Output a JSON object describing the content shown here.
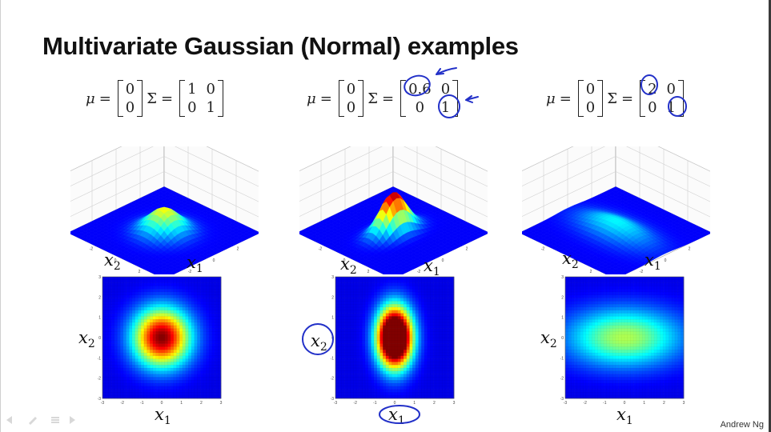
{
  "title": "Multivariate Gaussian (Normal) examples",
  "footer": "Andrew Ng",
  "labels": {
    "x1": "x",
    "x2": "x",
    "sub1": "1",
    "sub2": "2"
  },
  "examples": [
    {
      "mu": [
        "0",
        "0"
      ],
      "sigma": [
        [
          "1",
          "0"
        ],
        [
          "0",
          "1"
        ]
      ],
      "s1": 1,
      "s2": 1
    },
    {
      "mu": [
        "0",
        "0"
      ],
      "sigma": [
        [
          "0.6",
          "0"
        ],
        [
          "0",
          "1"
        ]
      ],
      "s1": 0.6,
      "s2": 1
    },
    {
      "mu": [
        "0",
        "0"
      ],
      "sigma": [
        [
          "2",
          "0"
        ],
        [
          "0",
          "1"
        ]
      ],
      "s1": 2,
      "s2": 1
    }
  ],
  "symbols": {
    "mu": "μ",
    "sigma": "Σ",
    "eq": "="
  },
  "chart_data": [
    {
      "type": "surface",
      "xlabel": "x1",
      "ylabel": "x2",
      "xlim": [
        -4,
        4
      ],
      "ylim": [
        -4,
        4
      ],
      "zlim": [
        0,
        0.4
      ],
      "zticks": [
        "0",
        "0.1",
        "0.2",
        "0.3",
        "0.4"
      ],
      "sigma_x1": 1,
      "sigma_x2": 1
    },
    {
      "type": "surface",
      "xlabel": "x1",
      "ylabel": "x2",
      "xlim": [
        -4,
        4
      ],
      "ylim": [
        -4,
        4
      ],
      "zlim": [
        0,
        0.4
      ],
      "zticks": [
        "0",
        "0.1",
        "0.2",
        "0.3",
        "0.4"
      ],
      "sigma_x1": 0.6,
      "sigma_x2": 1
    },
    {
      "type": "surface",
      "xlabel": "x1",
      "ylabel": "x2",
      "xlim": [
        -4,
        4
      ],
      "ylim": [
        -4,
        4
      ],
      "zlim": [
        0,
        0.4
      ],
      "zticks": [
        "0",
        "0.1",
        "0.2",
        "0.3",
        "0.4"
      ],
      "sigma_x1": 2,
      "sigma_x2": 1
    },
    {
      "type": "heatmap",
      "xlabel": "x1",
      "ylabel": "x2",
      "xlim": [
        -3,
        3
      ],
      "ylim": [
        -3,
        3
      ],
      "ticks": [
        "-3",
        "-2",
        "-1",
        "0",
        "1",
        "2",
        "3"
      ],
      "sigma_x1": 1,
      "sigma_x2": 1
    },
    {
      "type": "heatmap",
      "xlabel": "x1",
      "ylabel": "x2",
      "xlim": [
        -3,
        3
      ],
      "ylim": [
        -3,
        3
      ],
      "ticks": [
        "-3",
        "-2",
        "-1",
        "0",
        "1",
        "2",
        "3"
      ],
      "sigma_x1": 0.6,
      "sigma_x2": 1
    },
    {
      "type": "heatmap",
      "xlabel": "x1",
      "ylabel": "x2",
      "xlim": [
        -3,
        3
      ],
      "ylim": [
        -3,
        3
      ],
      "ticks": [
        "-3",
        "-2",
        "-1",
        "0",
        "1",
        "2",
        "3"
      ],
      "sigma_x1": 2,
      "sigma_x2": 1
    }
  ]
}
